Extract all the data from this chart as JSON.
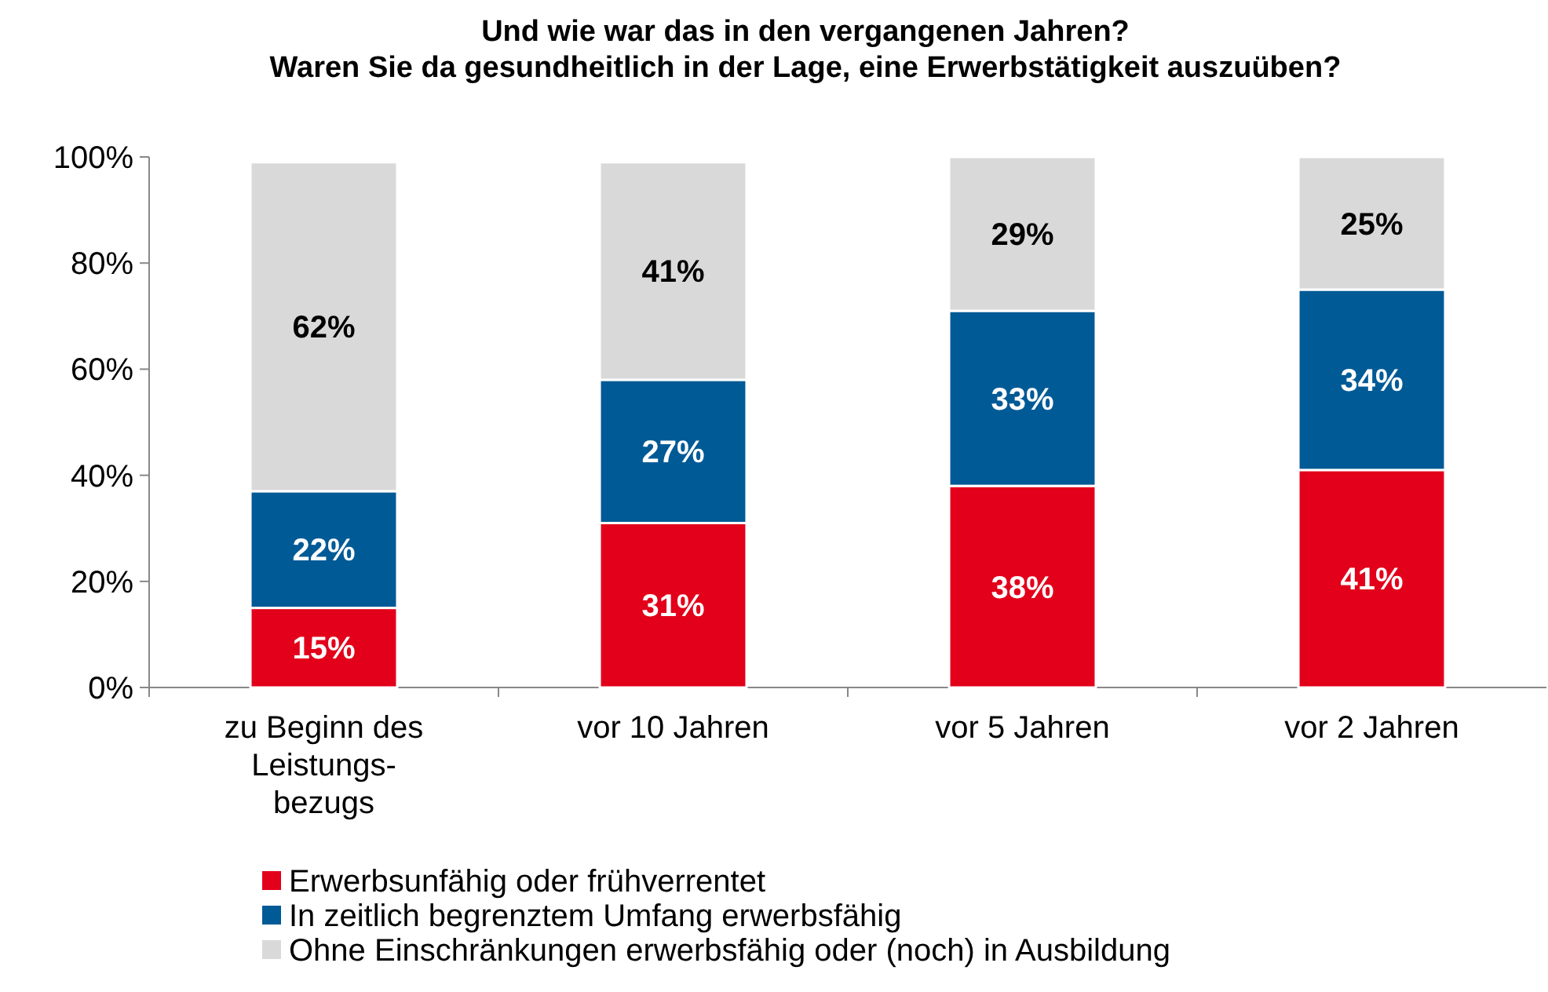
{
  "chart_data": {
    "type": "bar",
    "stacked": true,
    "title": "Und wie war das in den vergangenen Jahren?\nWaren Sie da gesundheitlich in der Lage, eine Erwerbstätigkeit auszuüben?",
    "categories": [
      "zu Beginn des\nLeistungs-\nbezugs",
      "vor 10 Jahren",
      "vor 5 Jahren",
      "vor 2 Jahren"
    ],
    "series": [
      {
        "name": "Erwerbsunfähig oder frühverrentet",
        "color": "#e2001a",
        "values": [
          15,
          31,
          38,
          41
        ],
        "value_labels": [
          "15%",
          "31%",
          "38%",
          "41%"
        ]
      },
      {
        "name": "In zeitlich begrenztem Umfang erwerbsfähig",
        "color": "#005a96",
        "values": [
          22,
          27,
          33,
          34
        ],
        "value_labels": [
          "22%",
          "27%",
          "33%",
          "34%"
        ]
      },
      {
        "name": "Ohne Einschränkungen erwerbsfähig oder (noch) in Ausbildung",
        "color": "#d9d9d9",
        "values": [
          62,
          41,
          29,
          25
        ],
        "value_labels": [
          "62%",
          "41%",
          "29%",
          "25%"
        ]
      }
    ],
    "ylim": [
      0,
      100
    ],
    "yticks": [
      {
        "value": 0,
        "label": "0%"
      },
      {
        "value": 20,
        "label": "20%"
      },
      {
        "value": 40,
        "label": "40%"
      },
      {
        "value": 60,
        "label": "60%"
      },
      {
        "value": 80,
        "label": "80%"
      },
      {
        "value": 100,
        "label": "100%"
      }
    ],
    "grid": false,
    "legend": "bottom"
  }
}
